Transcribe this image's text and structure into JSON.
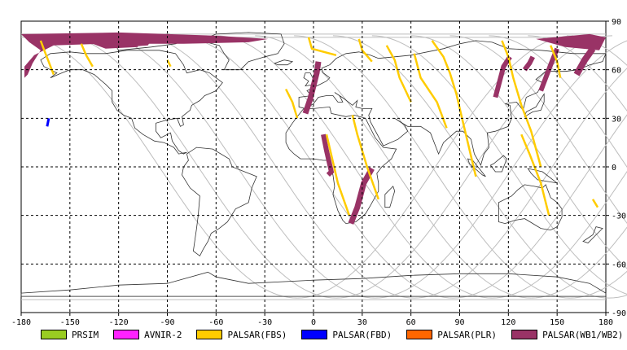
{
  "map": {
    "x_ticks": [
      "-180",
      "-150",
      "-120",
      "-90",
      "-60",
      "-30",
      "0",
      "30",
      "60",
      "90",
      "120",
      "150",
      "180"
    ],
    "y_ticks": [
      "90",
      "60",
      "30",
      "0",
      "-30",
      "-60",
      "-90"
    ],
    "lon_range": [
      -180,
      180
    ],
    "lat_range": [
      -90,
      90
    ],
    "colors": {
      "grid": "#000000",
      "coast": "#333333",
      "orbit": "#bdbdbd"
    }
  },
  "legend": {
    "items": [
      {
        "label": "PRSIM",
        "color": "#99cc22"
      },
      {
        "label": "AVNIR-2",
        "color": "#ff22ff"
      },
      {
        "label": "PALSAR(FBS)",
        "color": "#ffcc00"
      },
      {
        "label": "PALSAR(FBD)",
        "color": "#0000ff"
      },
      {
        "label": "PALSAR(PLR)",
        "color": "#ff6600"
      },
      {
        "label": "PALSAR(WB1/WB2)",
        "color": "#993366"
      }
    ]
  }
}
